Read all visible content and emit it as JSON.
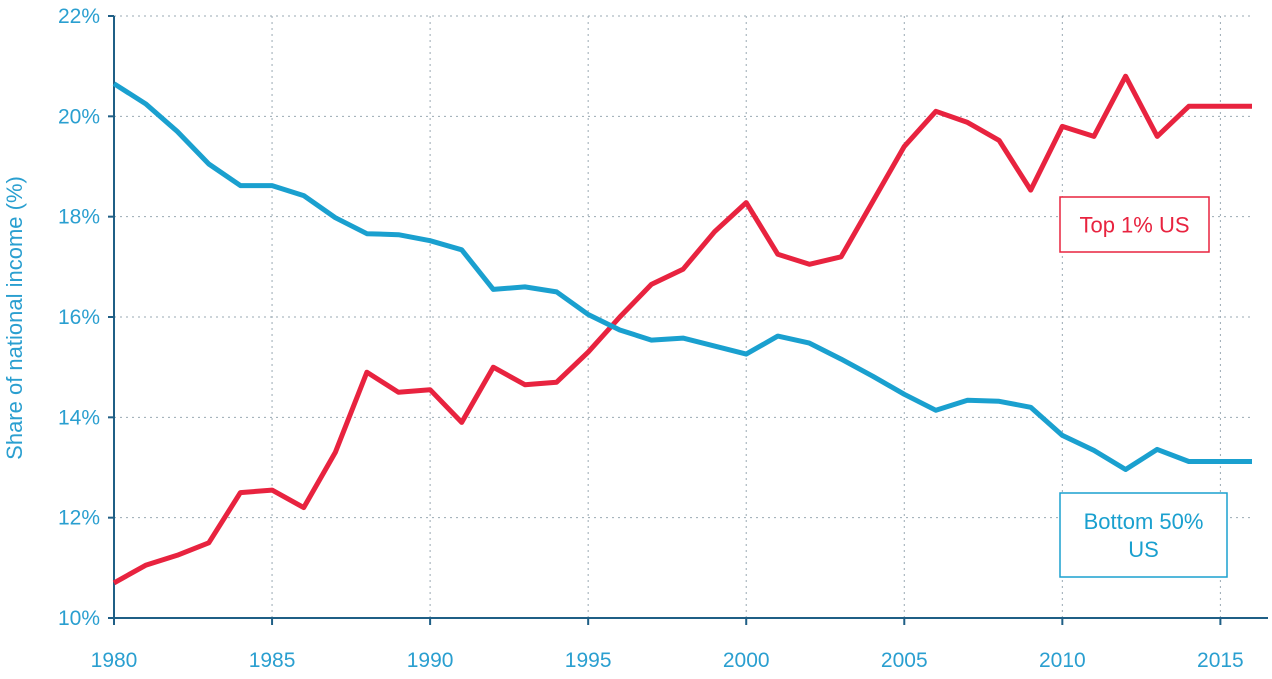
{
  "chart_data": {
    "type": "line",
    "title": "",
    "ylabel": "Share of national income (%)",
    "xlabel": "",
    "xlim": [
      1980,
      2016
    ],
    "ylim": [
      10,
      22
    ],
    "x_ticks": [
      1980,
      1985,
      1990,
      1995,
      2000,
      2005,
      2010,
      2015
    ],
    "x_tick_labels": [
      "1980",
      "1985",
      "1990",
      "1995",
      "2000",
      "2005",
      "2010",
      "2015"
    ],
    "y_ticks": [
      10,
      12,
      14,
      16,
      18,
      20,
      22
    ],
    "y_tick_labels": [
      "10%",
      "12%",
      "14%",
      "16%",
      "18%",
      "20%",
      "22%"
    ],
    "grid": true,
    "x": [
      1980,
      1981,
      1982,
      1983,
      1984,
      1985,
      1986,
      1987,
      1988,
      1989,
      1990,
      1991,
      1992,
      1993,
      1994,
      1995,
      1996,
      1997,
      1998,
      1999,
      2000,
      2001,
      2002,
      2003,
      2004,
      2005,
      2006,
      2007,
      2008,
      2009,
      2010,
      2011,
      2012,
      2013,
      2014,
      2015,
      2016
    ],
    "series": [
      {
        "name": "Top 1% US",
        "color": "#e8233f",
        "values": [
          10.7,
          11.05,
          11.25,
          11.5,
          12.5,
          12.55,
          12.2,
          13.3,
          14.9,
          14.5,
          14.55,
          13.9,
          15.0,
          14.65,
          14.7,
          15.3,
          16.0,
          16.65,
          16.95,
          17.7,
          18.28,
          17.25,
          17.05,
          17.2,
          18.3,
          19.4,
          20.1,
          19.88,
          19.52,
          18.53,
          19.8,
          19.6,
          20.8,
          19.6,
          20.2,
          20.2,
          20.2
        ]
      },
      {
        "name": "Bottom 50% US",
        "color": "#1aa0cf",
        "values": [
          20.65,
          20.25,
          19.7,
          19.05,
          18.62,
          18.62,
          18.42,
          17.98,
          17.66,
          17.64,
          17.52,
          17.34,
          16.55,
          16.6,
          16.5,
          16.05,
          15.74,
          15.54,
          15.58,
          15.42,
          15.26,
          15.62,
          15.48,
          15.16,
          14.82,
          14.46,
          14.14,
          14.34,
          14.32,
          14.2,
          13.64,
          13.34,
          12.96,
          13.36,
          13.12,
          13.12,
          13.12
        ]
      }
    ],
    "annotations": [
      {
        "series": "Top 1% US",
        "lines": [
          "Top 1% US"
        ]
      },
      {
        "series": "Bottom 50% US",
        "lines": [
          "Bottom 50%",
          "US"
        ]
      }
    ]
  }
}
